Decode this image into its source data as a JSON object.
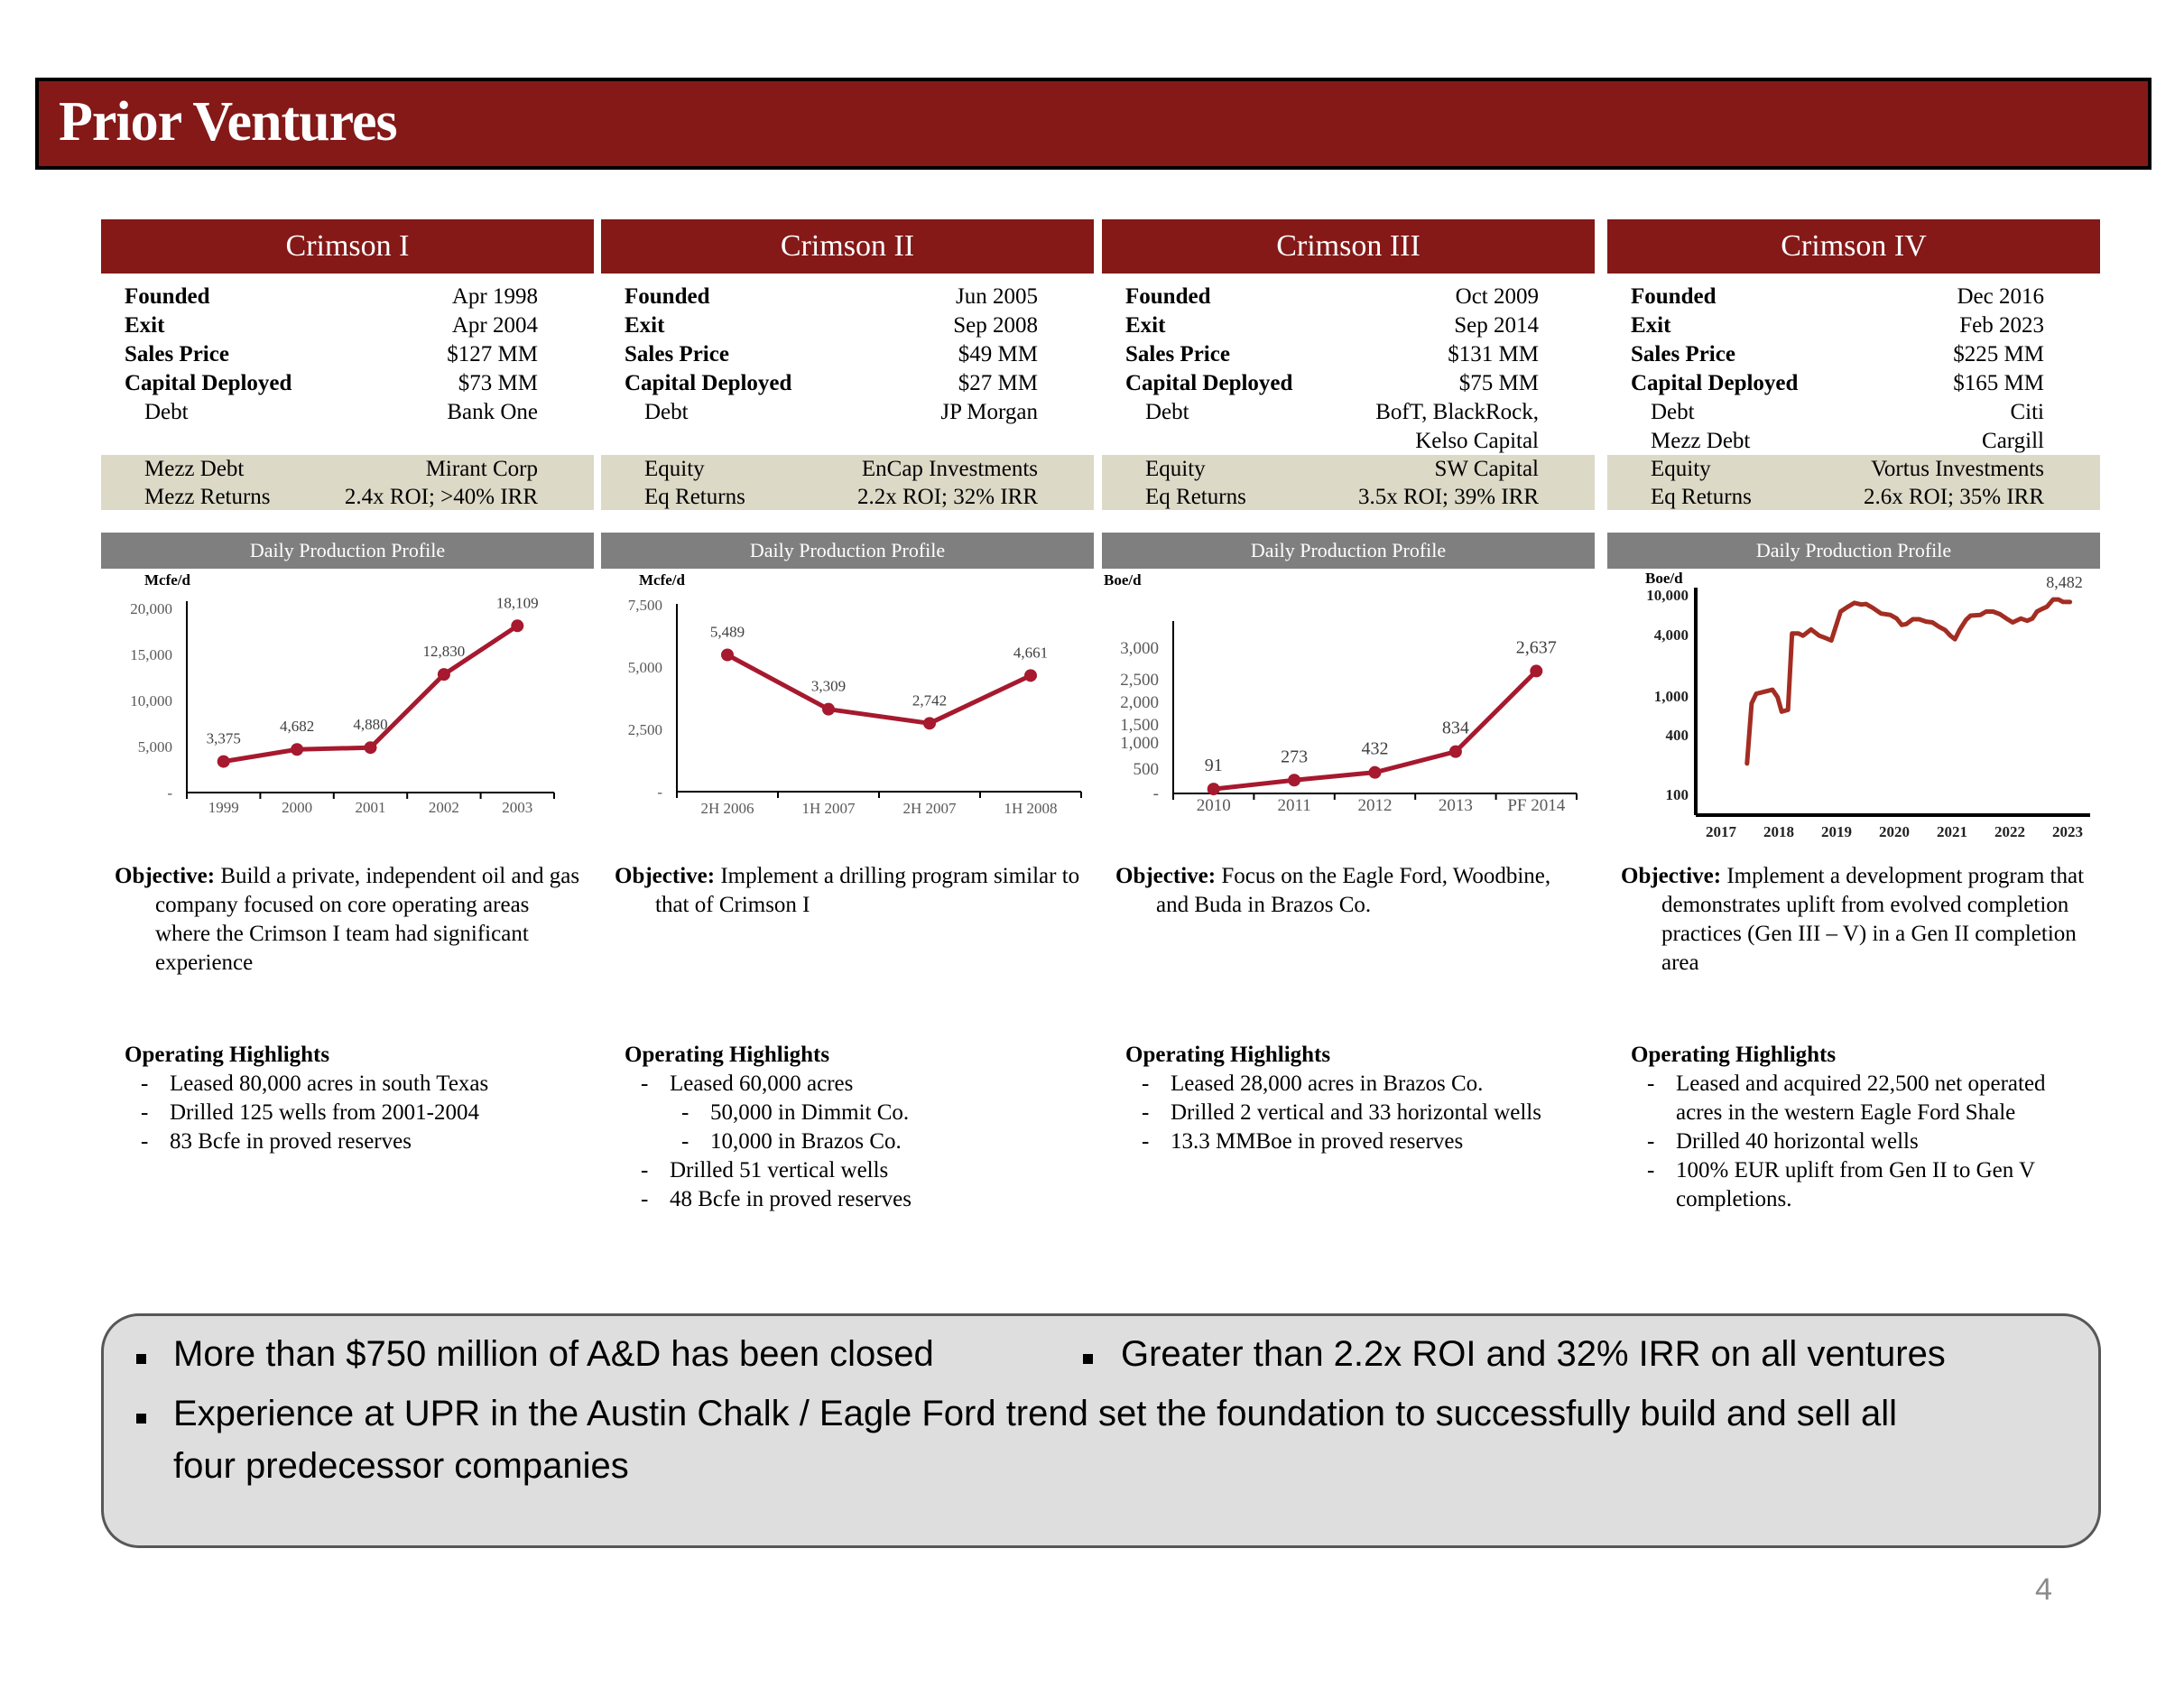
{
  "title": "Prior Ventures",
  "colors": {
    "brand": "#841918",
    "band": "#dcd9c7",
    "subhead": "#7f7f7f",
    "line": "#a6192e",
    "line4": "#a32d22",
    "summary_bg": "#dedede"
  },
  "labels": {
    "founded": "Founded",
    "exit": "Exit",
    "sales_price": "Sales Price",
    "capital_deployed": "Capital Deployed",
    "chart_title": "Daily Production Profile",
    "objective": "Objective:",
    "operating_highlights": "Operating Highlights"
  },
  "ventures": [
    {
      "name": "Crimson I",
      "founded": "Apr 1998",
      "exit": "Apr 2004",
      "sales_price": "$127 MM",
      "capital_deployed": "$73 MM",
      "extra_rows": [
        {
          "label": "Debt",
          "value": "Bank One"
        }
      ],
      "band_rows": [
        {
          "label": "Mezz Debt",
          "value": "Mirant Corp"
        },
        {
          "label": "Mezz Returns",
          "value": "2.4x ROI; >40% IRR"
        }
      ],
      "objective": "Build a private, independent oil and gas company focused on core operating areas where the Crimson I team had significant experience",
      "highlights": [
        {
          "text": "Leased 80,000 acres in south Texas",
          "level": 1
        },
        {
          "text": "Drilled 125 wells from 2001-2004",
          "level": 1
        },
        {
          "text": "83 Bcfe in proved reserves",
          "level": 1
        }
      ]
    },
    {
      "name": "Crimson II",
      "founded": "Jun 2005",
      "exit": "Sep 2008",
      "sales_price": "$49 MM",
      "capital_deployed": "$27 MM",
      "extra_rows": [
        {
          "label": "Debt",
          "value": "JP Morgan"
        }
      ],
      "band_rows": [
        {
          "label": "Equity",
          "value": "EnCap Investments"
        },
        {
          "label": "Eq Returns",
          "value": "2.2x ROI; 32% IRR"
        }
      ],
      "objective": "Implement a drilling program similar to that of Crimson I",
      "highlights": [
        {
          "text": "Leased  60,000 acres",
          "level": 1
        },
        {
          "text": "50,000 in Dimmit Co.",
          "level": 2
        },
        {
          "text": "10,000 in Brazos Co.",
          "level": 2
        },
        {
          "text": "Drilled 51 vertical wells",
          "level": 1
        },
        {
          "text": "48 Bcfe in proved reserves",
          "level": 1
        }
      ]
    },
    {
      "name": "Crimson III",
      "founded": "Oct 2009",
      "exit": "Sep 2014",
      "sales_price": "$131 MM",
      "capital_deployed": "$75 MM",
      "extra_rows": [
        {
          "label": "Debt",
          "value": "BofT, BlackRock,"
        },
        {
          "label": "",
          "value": "Kelso Capital"
        }
      ],
      "band_rows": [
        {
          "label": "Equity",
          "value": "SW Capital"
        },
        {
          "label": "Eq Returns",
          "value": "3.5x ROI; 39% IRR"
        }
      ],
      "objective": "Focus on the Eagle Ford, Woodbine, and Buda in Brazos Co.",
      "highlights": [
        {
          "text": "Leased 28,000 acres in Brazos Co.",
          "level": 1
        },
        {
          "text": "Drilled 2 vertical and 33 horizontal wells",
          "level": 1
        },
        {
          "text": "13.3 MMBoe in proved reserves",
          "level": 1
        }
      ]
    },
    {
      "name": "Crimson IV",
      "founded": "Dec 2016",
      "exit": "Feb 2023",
      "sales_price": "$225 MM",
      "capital_deployed": "$165 MM",
      "extra_rows": [
        {
          "label": "Debt",
          "value": "Citi"
        },
        {
          "label": "Mezz Debt",
          "value": "Cargill"
        }
      ],
      "band_rows": [
        {
          "label": "Equity",
          "value": "Vortus Investments"
        },
        {
          "label": "Eq Returns",
          "value": "2.6x ROI; 35% IRR"
        }
      ],
      "objective": "Implement a development program that demonstrates uplift from evolved completion practices (Gen III – V) in a Gen II completion area",
      "highlights": [
        {
          "text": "Leased and acquired 22,500 net operated acres in the western Eagle Ford Shale",
          "level": 1
        },
        {
          "text": "Drilled 40 horizontal wells",
          "level": 1
        },
        {
          "text": "100% EUR uplift from Gen II to Gen V completions.",
          "level": 1
        }
      ]
    }
  ],
  "chart_data": [
    {
      "type": "line",
      "title": "Daily Production Profile",
      "ylabel": "Mcfe/d",
      "categories": [
        "1999",
        "2000",
        "2001",
        "2002",
        "2003"
      ],
      "values": [
        3375,
        4682,
        4880,
        12830,
        18109
      ],
      "data_labels": [
        "3,375",
        "4,682",
        "4,880",
        "12,830",
        "18,109"
      ],
      "yticks": [
        {
          "value": 20000,
          "label": "20,000"
        },
        {
          "value": 15000,
          "label": "15,000"
        },
        {
          "value": 10000,
          "label": "10,000"
        },
        {
          "value": 5000,
          "label": "5,000"
        },
        {
          "value": 0,
          "label": "-"
        }
      ],
      "ylim": [
        0,
        20000
      ],
      "grid": false
    },
    {
      "type": "line",
      "title": "Daily Production Profile",
      "ylabel": "Mcfe/d",
      "categories": [
        "2H 2006",
        "1H 2007",
        "2H 2007",
        "1H 2008"
      ],
      "values": [
        5489,
        3309,
        2742,
        4661
      ],
      "data_labels": [
        "5,489",
        "3,309",
        "2,742",
        "4,661"
      ],
      "yticks": [
        {
          "value": 7500,
          "label": "7,500"
        },
        {
          "value": 5000,
          "label": "5,000"
        },
        {
          "value": 2500,
          "label": "2,500"
        },
        {
          "value": 0,
          "label": "-"
        }
      ],
      "ylim": [
        0,
        7500
      ],
      "grid": false
    },
    {
      "type": "line",
      "title": "Daily Production Profile",
      "ylabel": "Boe/d",
      "categories": [
        "2010",
        "2011",
        "2012",
        "2013",
        "PF 2014"
      ],
      "values": [
        91,
        273,
        432,
        834,
        2637
      ],
      "data_labels": [
        "91",
        "273",
        "432",
        "834",
        "2,637"
      ],
      "yticks": [
        {
          "value": 3000,
          "label": "3,000"
        },
        {
          "value": 2500,
          "label": "2,500"
        },
        {
          "value": 2000,
          "label": "2,000"
        },
        {
          "value": 1500,
          "label": "1,500"
        },
        {
          "value": 1000,
          "label": "1,000"
        },
        {
          "value": 500,
          "label": "500"
        },
        {
          "value": 0,
          "label": "-"
        }
      ],
      "ylim": [
        0,
        3000
      ],
      "grid": false
    },
    {
      "type": "line",
      "title": "Daily Production Profile",
      "ylabel": "Boe/d",
      "x_tick_labels": [
        "2017",
        "2018",
        "2019",
        "2020",
        "2021",
        "2022",
        "2023"
      ],
      "yticks": [
        {
          "value": 10000,
          "label": "10,000"
        },
        {
          "value": 4000,
          "label": "4,000"
        },
        {
          "value": 1000,
          "label": "1,000"
        },
        {
          "value": 400,
          "label": "400"
        },
        {
          "value": 100,
          "label": "100"
        }
      ],
      "ylim": [
        70,
        13000
      ],
      "end_label": "8,482",
      "series": [
        {
          "name": "Boe/d",
          "x": [
            2017.45,
            2017.53,
            2017.61,
            2017.89,
            2017.98,
            2018.05,
            2018.16,
            2018.23,
            2018.34,
            2018.42,
            2018.56,
            2018.7,
            2018.81,
            2018.91,
            2019.07,
            2019.18,
            2019.31,
            2019.43,
            2019.51,
            2019.63,
            2019.77,
            2019.93,
            2020.04,
            2020.13,
            2020.21,
            2020.32,
            2020.43,
            2020.55,
            2020.66,
            2020.77,
            2020.88,
            2020.97,
            2021.05,
            2021.13,
            2021.24,
            2021.32,
            2021.49,
            2021.59,
            2021.71,
            2021.83,
            2021.94,
            2022.05,
            2022.19,
            2022.3,
            2022.39,
            2022.47,
            2022.55,
            2022.64,
            2022.75,
            2022.84,
            2022.92,
            2023.04
          ],
          "values": [
            205,
            840,
            1050,
            1150,
            970,
            690,
            720,
            4100,
            4100,
            3900,
            4500,
            3900,
            3700,
            3500,
            6800,
            7500,
            8300,
            8000,
            8100,
            7400,
            6500,
            6300,
            5800,
            5000,
            5100,
            5700,
            5700,
            5400,
            5300,
            4800,
            4450,
            3900,
            3600,
            4450,
            5600,
            6200,
            6300,
            6800,
            6800,
            6400,
            5800,
            5300,
            5800,
            5500,
            5800,
            6800,
            7200,
            7600,
            9000,
            9000,
            8500,
            8482
          ]
        }
      ],
      "grid": false
    }
  ],
  "summary": {
    "bullets": [
      "More than $750 million of A&D has been closed",
      "Greater than 2.2x ROI and 32% IRR on all ventures",
      "Experience at UPR in the Austin Chalk / Eagle Ford trend set the foundation to successfully build and sell all",
      "four predecessor companies"
    ]
  },
  "page_number": "4"
}
